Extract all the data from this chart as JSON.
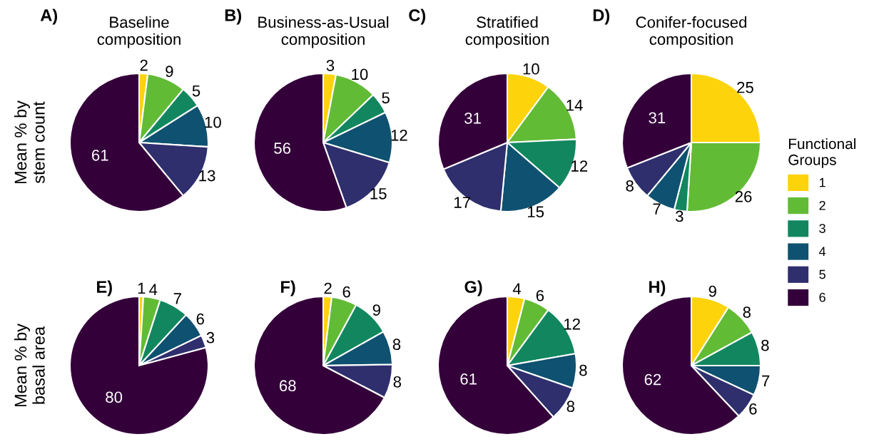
{
  "chart_data": [
    {
      "type": "pie",
      "title": "Baseline\ncomposition",
      "annotations": [
        "A)"
      ],
      "ylabel": "Mean % by\nstem count",
      "legend": "right",
      "legend_title": "Functional\nGroups",
      "categories": [
        "1",
        "2",
        "3",
        "4",
        "5",
        "6"
      ],
      "values": [
        2,
        9,
        5,
        10,
        13,
        61
      ],
      "colors": [
        "#fdd30c",
        "#62bb35",
        "#12875f",
        "#0f5170",
        "#2f2f6e",
        "#34003a"
      ],
      "data_labels": true
    },
    {
      "type": "pie",
      "title": "Business-as-Usual\ncomposition",
      "annotations": [
        "B)"
      ],
      "categories": [
        null,
        null,
        null,
        null,
        null,
        null
      ],
      "values": [
        3,
        10,
        5,
        12,
        15,
        56
      ],
      "colors": [
        "#fdd30c",
        "#62bb35",
        "#12875f",
        "#0f5170",
        "#2f2f6e",
        "#34003a"
      ],
      "data_labels": true
    },
    {
      "type": "pie",
      "title": "Stratified\ncomposition",
      "annotations": [
        "C)"
      ],
      "categories": [
        null,
        null,
        null,
        null,
        null,
        null
      ],
      "values": [
        10,
        14,
        12,
        15,
        17,
        31
      ],
      "colors": [
        "#fdd30c",
        "#62bb35",
        "#12875f",
        "#0f5170",
        "#2f2f6e",
        "#34003a"
      ],
      "data_labels": true
    },
    {
      "type": "pie",
      "title": "Conifer-focused\ncomposition",
      "annotations": [
        "D)"
      ],
      "categories": [
        null,
        null,
        null,
        null,
        null,
        null
      ],
      "values": [
        25,
        26,
        3,
        7,
        8,
        31
      ],
      "colors": [
        "#fdd30c",
        "#62bb35",
        "#12875f",
        "#0f5170",
        "#2f2f6e",
        "#34003a"
      ],
      "data_labels": true
    },
    {
      "type": "pie",
      "annotations": [
        "E)"
      ],
      "ylabel": "Mean % by\nbasal area",
      "categories": [
        null,
        null,
        null,
        null,
        null,
        null
      ],
      "values": [
        1,
        4,
        7,
        6,
        3,
        80
      ],
      "colors": [
        "#fdd30c",
        "#62bb35",
        "#12875f",
        "#0f5170",
        "#2f2f6e",
        "#34003a"
      ],
      "data_labels": true
    },
    {
      "type": "pie",
      "annotations": [
        "F)"
      ],
      "categories": [
        null,
        null,
        null,
        null,
        null,
        null
      ],
      "values": [
        2,
        6,
        9,
        8,
        8,
        68
      ],
      "colors": [
        "#fdd30c",
        "#62bb35",
        "#12875f",
        "#0f5170",
        "#2f2f6e",
        "#34003a"
      ],
      "data_labels": true
    },
    {
      "type": "pie",
      "annotations": [
        "G)"
      ],
      "categories": [
        null,
        null,
        null,
        null,
        null,
        null
      ],
      "values": [
        4,
        6,
        12,
        8,
        8,
        61
      ],
      "colors": [
        "#fdd30c",
        "#62bb35",
        "#12875f",
        "#0f5170",
        "#2f2f6e",
        "#34003a"
      ],
      "data_labels": true
    },
    {
      "type": "pie",
      "annotations": [
        "H)"
      ],
      "categories": [
        null,
        null,
        null,
        null,
        null,
        null
      ],
      "values": [
        9,
        8,
        8,
        7,
        6,
        62
      ],
      "colors": [
        "#fdd30c",
        "#62bb35",
        "#12875f",
        "#0f5170",
        "#2f2f6e",
        "#34003a"
      ],
      "data_labels": true
    }
  ]
}
